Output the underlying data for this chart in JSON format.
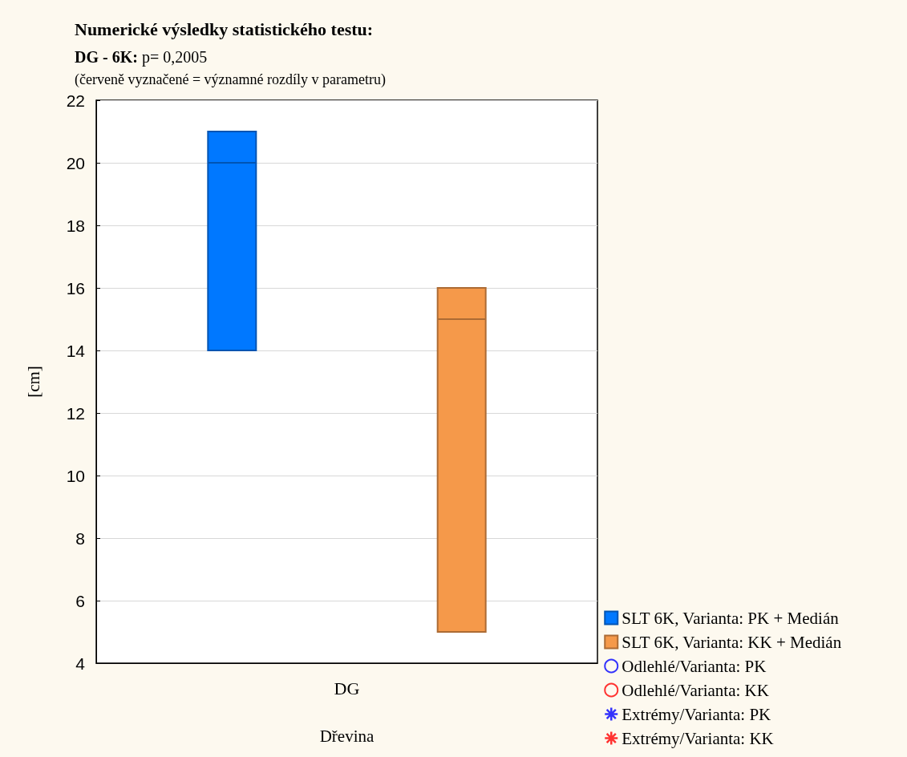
{
  "chart_data": {
    "type": "box",
    "title": "Numerické výsledky statistického testu:",
    "subtitle": "DG - 6K: p= 0,2005",
    "annotations": [
      "(červeně vyznačené = významné rozdíly v parametru)"
    ],
    "xlabel": "Dřevina",
    "ylabel": "[cm]",
    "categories": [
      "DG"
    ],
    "series": [
      {
        "name": "SLT 6K, Varianta: PK + Medián",
        "color": "#0078ff",
        "boxes": [
          {
            "low": 14,
            "q1": 14,
            "median": 20,
            "q3": 21,
            "high": 21
          }
        ]
      },
      {
        "name": "SLT 6K, Varianta: KK + Medián",
        "color": "#f5994a",
        "boxes": [
          {
            "low": 5,
            "q1": 5,
            "median": 15,
            "q3": 16,
            "high": 16
          }
        ]
      },
      {
        "name": "Odlehlé/Varianta: PK",
        "type": "scatter",
        "marker": "circle",
        "color": "#0000ff",
        "values": [
          null
        ]
      },
      {
        "name": "Odlehlé/Varianta: KK",
        "type": "scatter",
        "marker": "circle",
        "color": "#ff0000",
        "values": [
          null
        ]
      },
      {
        "name": "Extrémy/Varianta: PK",
        "type": "scatter",
        "marker": "star",
        "color": "#0000ff",
        "values": [
          null
        ]
      },
      {
        "name": "Extrémy/Varianta: KK",
        "type": "scatter",
        "marker": "star",
        "color": "#ff0000",
        "values": [
          null
        ]
      }
    ],
    "ylim": [
      4,
      22
    ],
    "yticks": [
      4,
      6,
      8,
      10,
      12,
      14,
      16,
      18,
      20,
      22
    ],
    "grid": "y",
    "legend": "bottom right"
  }
}
